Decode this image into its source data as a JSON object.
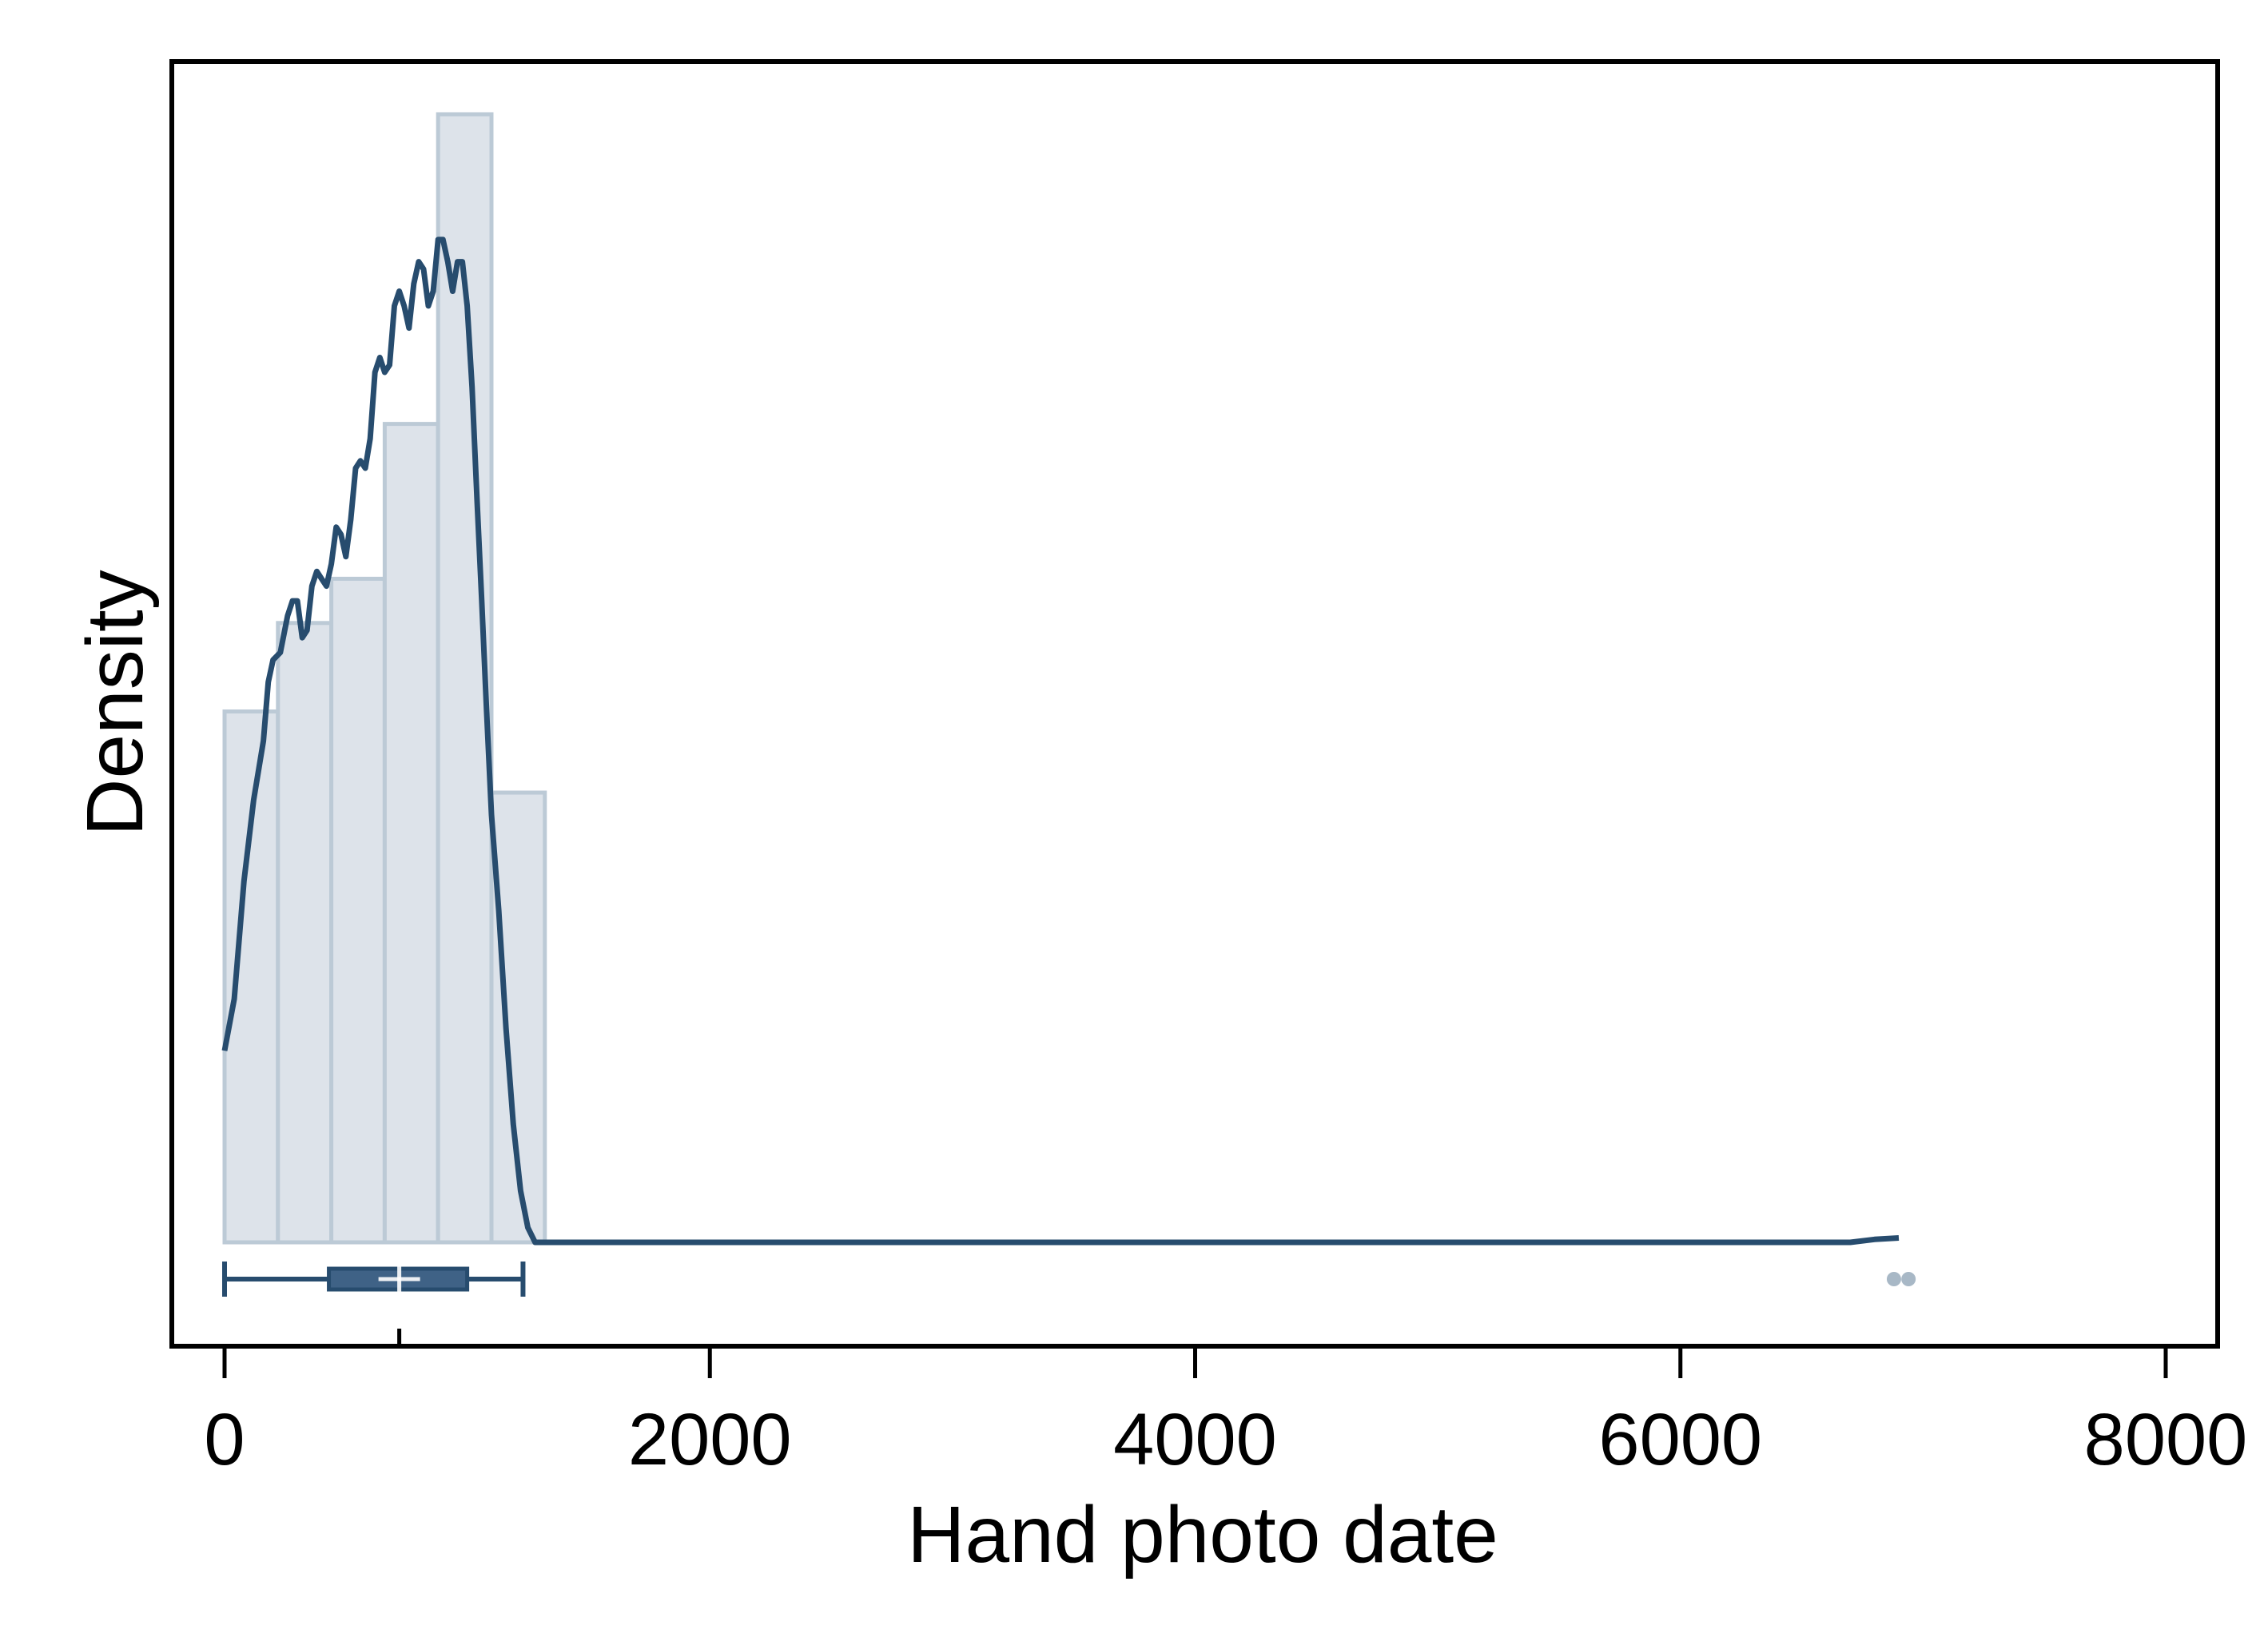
{
  "chart_data": {
    "type": "histogram",
    "xlabel": "Hand photo date",
    "ylabel": "Density",
    "xlim": [
      -100,
      8100
    ],
    "x_ticks": [
      0,
      2000,
      4000,
      6000,
      8000
    ],
    "x_tick_labels": [
      "0",
      "2000",
      "4000",
      "6000",
      "8000"
    ],
    "y_ticks_shown": false,
    "grid": false,
    "legend": "none",
    "bins": [
      {
        "x0": 0,
        "x1": 220,
        "density": 0.00072
      },
      {
        "x0": 220,
        "x1": 440,
        "density": 0.00084
      },
      {
        "x0": 440,
        "x1": 660,
        "density": 0.0009
      },
      {
        "x0": 660,
        "x1": 880,
        "density": 0.00111
      },
      {
        "x0": 880,
        "x1": 1100,
        "density": 0.00153
      },
      {
        "x0": 1100,
        "x1": 1320,
        "density": 0.00061
      }
    ],
    "kde": {
      "x": [
        0,
        40,
        80,
        120,
        160,
        180,
        200,
        230,
        260,
        280,
        300,
        320,
        340,
        360,
        380,
        400,
        420,
        440,
        460,
        480,
        500,
        520,
        540,
        560,
        580,
        600,
        620,
        640,
        660,
        680,
        700,
        720,
        740,
        760,
        780,
        800,
        820,
        840,
        860,
        880,
        900,
        920,
        940,
        960,
        980,
        1000,
        1020,
        1040,
        1060,
        1080,
        1100,
        1130,
        1160,
        1190,
        1220,
        1250,
        1280,
        1310,
        1340,
        1370,
        1400,
        1420,
        1440,
        1500,
        2000,
        3000,
        4000,
        5000,
        6000,
        6500,
        6700,
        6800,
        6900
      ],
      "y": [
        0.00026,
        0.00033,
        0.00049,
        0.0006,
        0.00068,
        0.00076,
        0.00079,
        0.0008,
        0.00085,
        0.00087,
        0.00087,
        0.00082,
        0.00083,
        0.00089,
        0.00091,
        0.0009,
        0.00089,
        0.00092,
        0.00097,
        0.00096,
        0.00093,
        0.00098,
        0.00105,
        0.00106,
        0.00105,
        0.00109,
        0.00118,
        0.0012,
        0.00118,
        0.00119,
        0.00127,
        0.00129,
        0.00127,
        0.00124,
        0.0013,
        0.00133,
        0.00132,
        0.00127,
        0.00129,
        0.00136,
        0.00136,
        0.00133,
        0.00129,
        0.00133,
        0.00133,
        0.00127,
        0.00116,
        0.00101,
        0.00087,
        0.00072,
        0.00058,
        0.00045,
        0.00029,
        0.00016,
        7e-05,
        2e-05,
        0.0,
        0.0,
        0.0,
        0.0,
        0.0,
        0.0,
        0.0,
        0.0,
        0.0,
        0.0,
        0.0,
        0.0,
        0.0,
        0.0,
        0.0,
        4e-06,
        6e-06
      ]
    },
    "boxplot": {
      "whisker_low": 0,
      "q1": 430,
      "median": 720,
      "q3": 1000,
      "whisker_high": 1230,
      "mean": 720,
      "outliers": [
        6880,
        6940
      ]
    },
    "colors": {
      "bar_fill": "#dde3ea",
      "bar_stroke": "#bccad6",
      "kde_line": "#274c6e",
      "box_fill": "#3f6286",
      "box_stroke": "#274c6e",
      "outlier": "#a8b8c6"
    }
  }
}
